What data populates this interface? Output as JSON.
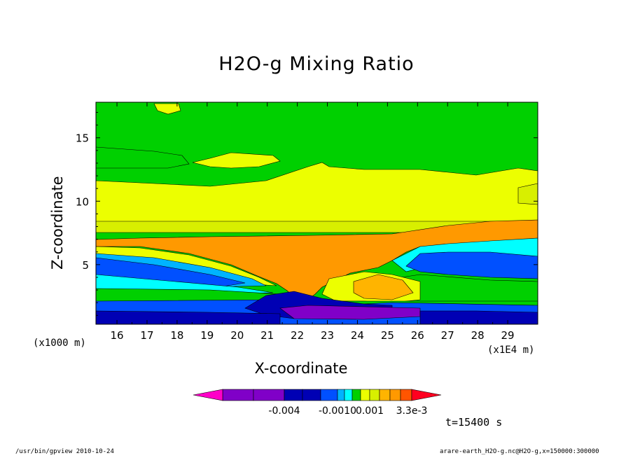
{
  "chart_data": {
    "type": "heatmap",
    "title": "H2O-g Mixing Ratio",
    "xlabel": "X-coordinate",
    "ylabel": "Z-coordinate",
    "x_unit_label": "(x1000 m)",
    "x_unit_label_right": "(x1E4 m)",
    "xlim": [
      15.3,
      30.0
    ],
    "ylim": [
      0.3,
      17.8
    ],
    "x_ticks": [
      "16",
      "17",
      "18",
      "19",
      "20",
      "21",
      "22",
      "23",
      "24",
      "25",
      "26",
      "27",
      "28",
      "29"
    ],
    "y_ticks": [
      "5",
      "10",
      "15"
    ],
    "colorbar_labels": [
      "-0.004",
      "-0.0010",
      "0.001",
      "3.3e-3"
    ],
    "time_label": "t=15400 s"
  },
  "footer": {
    "left": "/usr/bin/gpview  2010-10-24",
    "right": "arare-earth_H2O-g.nc@H2O-g,x=150000:300000"
  },
  "colors": {
    "green": "#00d000",
    "yellow": "#ecff00",
    "yellow_light": "#d8ef00",
    "orange": "#ff9900",
    "orange_light": "#ffb400",
    "cyan": "#00ffff",
    "sky": "#00b4ff",
    "blue": "#0050ff",
    "navy": "#0000b4",
    "purple": "#8000c8",
    "magenta": "#ff00c8",
    "red_orange": "#ff5500",
    "red": "#ff0020"
  }
}
